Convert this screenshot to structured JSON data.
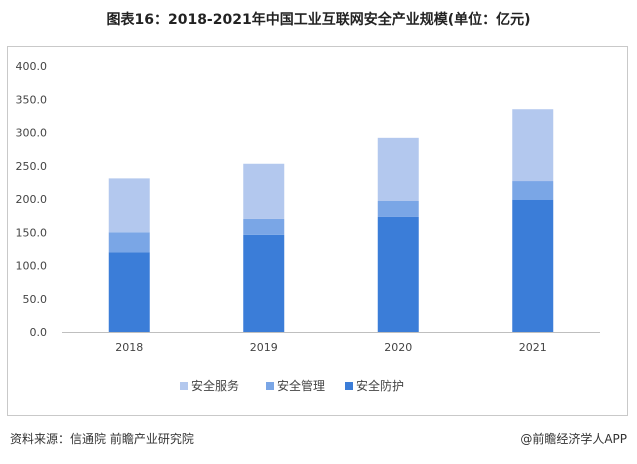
{
  "title": "图表16：2018-2021年中国工业互联网安全产业规模(单位：亿元)",
  "chart_data": {
    "type": "bar",
    "stacked": true,
    "categories": [
      "2018",
      "2019",
      "2020",
      "2021"
    ],
    "series": [
      {
        "name": "安全防护",
        "color": "#3b7dd8",
        "values": [
          120,
          146,
          173,
          199
        ]
      },
      {
        "name": "安全管理",
        "color": "#7aa6e6",
        "values": [
          30,
          24,
          24,
          28
        ]
      },
      {
        "name": "安全服务",
        "color": "#b3c8ee",
        "values": [
          81,
          83,
          95,
          108
        ]
      }
    ],
    "ylim": [
      0,
      400
    ],
    "yticks": [
      "0.0",
      "50.0",
      "100.0",
      "150.0",
      "200.0",
      "250.0",
      "300.0",
      "350.0",
      "400.0"
    ],
    "legend_order": [
      "安全服务",
      "安全管理",
      "安全防护"
    ],
    "legend_position": "bottom",
    "grid": false
  },
  "footer": {
    "source": "资料来源：信通院 前瞻产业研究院",
    "brand": "@前瞻经济学人APP"
  }
}
